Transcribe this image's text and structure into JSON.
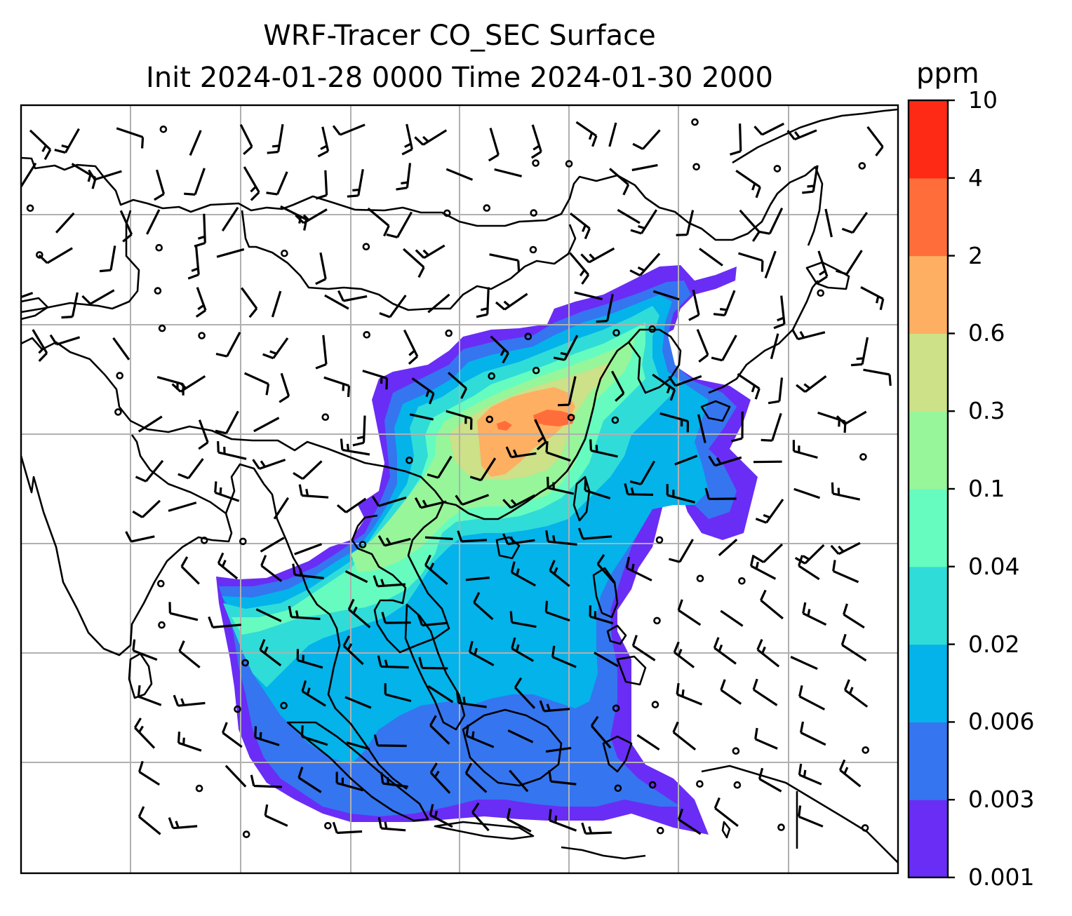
{
  "title": {
    "line1": "WRF-Tracer CO_SEC Surface",
    "line2": "Init 2024-01-28 0000 Time 2024-01-30 2000"
  },
  "colorbar": {
    "unit": "ppm",
    "ticks": [
      "0.001",
      "0.003",
      "0.006",
      "0.02",
      "0.04",
      "0.1",
      "0.3",
      "0.6",
      "2",
      "4",
      "10"
    ],
    "colors": [
      "#6a2df5",
      "#3575f0",
      "#03b3ea",
      "#30dcd8",
      "#66fcc0",
      "#97f59a",
      "#cce188",
      "#feaf62",
      "#ff6e3a",
      "#ff2a16"
    ]
  },
  "map": {
    "gridlines": true,
    "wind_barbs": true,
    "plume_levels": [
      {
        "level": 0,
        "color": "#6a2df5"
      },
      {
        "level": 1,
        "color": "#3575f0"
      },
      {
        "level": 2,
        "color": "#03b3ea"
      },
      {
        "level": 3,
        "color": "#30dcd8"
      },
      {
        "level": 4,
        "color": "#66fcc0"
      },
      {
        "level": 5,
        "color": "#97f59a"
      },
      {
        "level": 6,
        "color": "#cce188"
      },
      {
        "level": 7,
        "color": "#feaf62"
      },
      {
        "level": 8,
        "color": "#ff6e3a"
      }
    ]
  }
}
